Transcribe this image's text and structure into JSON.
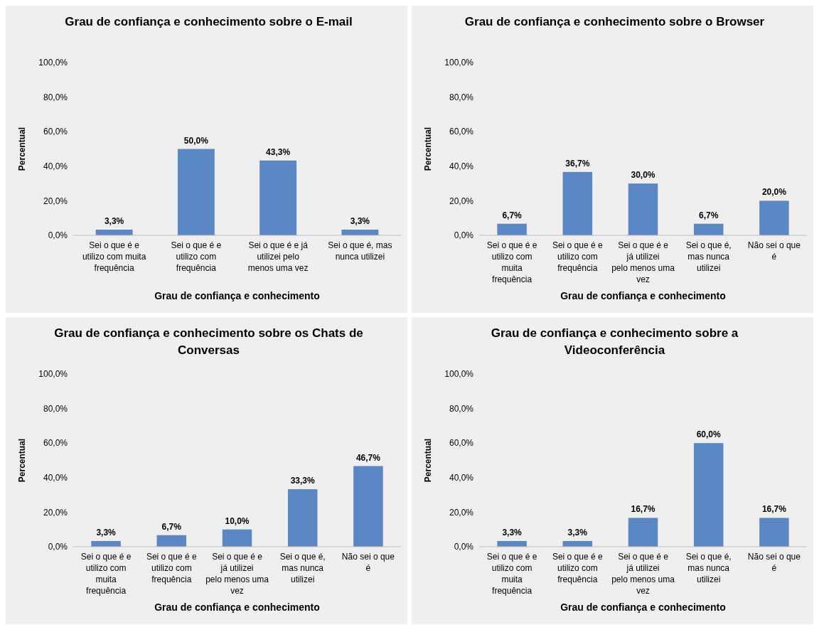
{
  "chart_data": [
    {
      "type": "bar",
      "title": "Grau de confiança e conhecimento sobre o E-mail",
      "xlabel": "Grau de confiança e conhecimento",
      "ylabel": "Percentual",
      "categories": [
        "Sei o que é e utilizo com muita frequência",
        "Sei o que é e utilizo com frequência",
        "Sei o que é e já utilizei pelo menos uma vez",
        "Sei o que é, mas nunca utilizei"
      ],
      "values": [
        3.3,
        50.0,
        43.3,
        3.3
      ],
      "value_labels": [
        "3,3%",
        "50,0%",
        "43,3%",
        "3,3%"
      ],
      "color": "#5b87c5",
      "ylim": [
        0,
        100
      ],
      "yticks": [
        {
          "value": 0,
          "label": "0,0%"
        },
        {
          "value": 20,
          "label": "20,0%"
        },
        {
          "value": 40,
          "label": "40,0%"
        },
        {
          "value": 60,
          "label": "60,0%"
        },
        {
          "value": 80,
          "label": "80,0%"
        },
        {
          "value": 100,
          "label": "100,0%"
        }
      ],
      "grid": false
    },
    {
      "type": "bar",
      "title": "Grau de confiança e conhecimento sobre o Browser",
      "xlabel": "Grau de confiança e conhecimento",
      "ylabel": "Percentual",
      "categories": [
        "Sei o que é e utilizo com muita frequência",
        "Sei o que é e utilizo com frequência",
        "Sei o que é e já utilizei pelo menos uma vez",
        "Sei o que é, mas nunca utilizei",
        "Não sei o que é"
      ],
      "values": [
        6.7,
        36.7,
        30.0,
        6.7,
        20.0
      ],
      "value_labels": [
        "6,7%",
        "36,7%",
        "30,0%",
        "6,7%",
        "20,0%"
      ],
      "color": "#5b87c5",
      "ylim": [
        0,
        100
      ],
      "yticks": [
        {
          "value": 0,
          "label": "0,0%"
        },
        {
          "value": 20,
          "label": "20,0%"
        },
        {
          "value": 40,
          "label": "40,0%"
        },
        {
          "value": 60,
          "label": "60,0%"
        },
        {
          "value": 80,
          "label": "80,0%"
        },
        {
          "value": 100,
          "label": "100,0%"
        }
      ],
      "grid": false
    },
    {
      "type": "bar",
      "title": "Grau de confiança e conhecimento sobre os Chats de Conversas",
      "xlabel": "Grau de confiança e conhecimento",
      "ylabel": "Percentual",
      "categories": [
        "Sei o que é e utilizo com muita frequência",
        "Sei o que é e utilizo com frequência",
        "Sei o que é e já utilizei pelo menos uma vez",
        "Sei o que é, mas nunca utilizei",
        "Não sei o que é"
      ],
      "values": [
        3.3,
        6.7,
        10.0,
        33.3,
        46.7
      ],
      "value_labels": [
        "3,3%",
        "6,7%",
        "10,0%",
        "33,3%",
        "46,7%"
      ],
      "color": "#5b87c5",
      "ylim": [
        0,
        100
      ],
      "yticks": [
        {
          "value": 0,
          "label": "0,0%"
        },
        {
          "value": 20,
          "label": "20,0%"
        },
        {
          "value": 40,
          "label": "40,0%"
        },
        {
          "value": 60,
          "label": "60,0%"
        },
        {
          "value": 80,
          "label": "80,0%"
        },
        {
          "value": 100,
          "label": "100,0%"
        }
      ],
      "grid": false
    },
    {
      "type": "bar",
      "title": "Grau de confiança e conhecimento sobre a Videoconferência",
      "xlabel": "Grau de confiança e conhecimento",
      "ylabel": "Percentual",
      "categories": [
        "Sei o que é e utilizo com muita frequência",
        "Sei o que é e utilizo com frequência",
        "Sei o que é e já utilizei pelo menos uma vez",
        "Sei o que é, mas nunca utilizei",
        "Não sei o que é"
      ],
      "values": [
        3.3,
        3.3,
        16.7,
        60.0,
        16.7
      ],
      "value_labels": [
        "3,3%",
        "3,3%",
        "16,7%",
        "60,0%",
        "16,7%"
      ],
      "color": "#5b87c5",
      "ylim": [
        0,
        100
      ],
      "yticks": [
        {
          "value": 0,
          "label": "0,0%"
        },
        {
          "value": 20,
          "label": "20,0%"
        },
        {
          "value": 40,
          "label": "40,0%"
        },
        {
          "value": 60,
          "label": "60,0%"
        },
        {
          "value": 80,
          "label": "80,0%"
        },
        {
          "value": 100,
          "label": "100,0%"
        }
      ],
      "grid": false
    }
  ]
}
